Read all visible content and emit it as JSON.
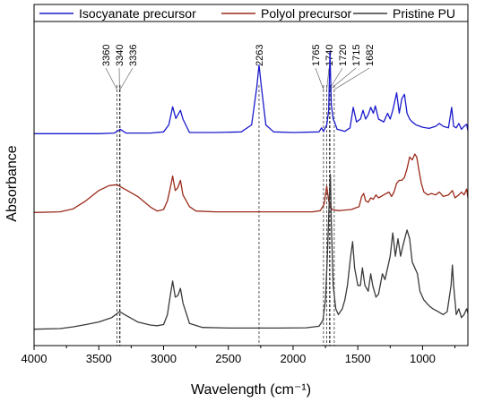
{
  "chart_data": {
    "type": "line",
    "xlabel": "Wavelength (cm⁻¹)",
    "ylabel": "Absorbance",
    "xlim": [
      4000,
      650
    ],
    "ylim": [
      0,
      1
    ],
    "x_reversed": true,
    "xticks": [
      4000,
      3500,
      3000,
      2500,
      2000,
      1500,
      1000
    ],
    "yticks_shown": false,
    "grid": false,
    "legend_position": "top",
    "peak_markers": [
      {
        "label": "3360",
        "x": 3360
      },
      {
        "label": "3340",
        "x": 3340
      },
      {
        "label": "3336",
        "x": 3336
      },
      {
        "label": "2263",
        "x": 2263
      },
      {
        "label": "1765",
        "x": 1765
      },
      {
        "label": "1740",
        "x": 1740
      },
      {
        "label": "1720",
        "x": 1720
      },
      {
        "label": "1715",
        "x": 1715
      },
      {
        "label": "1682",
        "x": 1682
      }
    ],
    "series": [
      {
        "name": "Isocyanate precursor",
        "color": "#1a1acc",
        "points": [
          [
            4000,
            0.72
          ],
          [
            3800,
            0.72
          ],
          [
            3500,
            0.72
          ],
          [
            3380,
            0.722
          ],
          [
            3335,
            0.735
          ],
          [
            3290,
            0.722
          ],
          [
            3100,
            0.722
          ],
          [
            3000,
            0.726
          ],
          [
            2960,
            0.75
          ],
          [
            2930,
            0.812
          ],
          [
            2905,
            0.772
          ],
          [
            2870,
            0.8
          ],
          [
            2850,
            0.77
          ],
          [
            2800,
            0.724
          ],
          [
            2600,
            0.724
          ],
          [
            2400,
            0.726
          ],
          [
            2320,
            0.75
          ],
          [
            2280,
            0.88
          ],
          [
            2263,
            0.955
          ],
          [
            2245,
            0.88
          ],
          [
            2210,
            0.75
          ],
          [
            2150,
            0.726
          ],
          [
            2000,
            0.724
          ],
          [
            1800,
            0.726
          ],
          [
            1780,
            0.74
          ],
          [
            1765,
            0.728
          ],
          [
            1740,
            0.75
          ],
          [
            1725,
            0.8
          ],
          [
            1715,
            1.0
          ],
          [
            1705,
            0.82
          ],
          [
            1690,
            0.77
          ],
          [
            1680,
            0.76
          ],
          [
            1660,
            0.735
          ],
          [
            1600,
            0.728
          ],
          [
            1560,
            0.74
          ],
          [
            1535,
            0.81
          ],
          [
            1510,
            0.76
          ],
          [
            1480,
            0.77
          ],
          [
            1460,
            0.8
          ],
          [
            1440,
            0.77
          ],
          [
            1420,
            0.785
          ],
          [
            1400,
            0.81
          ],
          [
            1380,
            0.79
          ],
          [
            1365,
            0.815
          ],
          [
            1340,
            0.77
          ],
          [
            1300,
            0.76
          ],
          [
            1270,
            0.79
          ],
          [
            1250,
            0.77
          ],
          [
            1230,
            0.8
          ],
          [
            1200,
            0.86
          ],
          [
            1180,
            0.79
          ],
          [
            1160,
            0.84
          ],
          [
            1140,
            0.855
          ],
          [
            1120,
            0.79
          ],
          [
            1100,
            0.77
          ],
          [
            1080,
            0.76
          ],
          [
            1050,
            0.75
          ],
          [
            1000,
            0.742
          ],
          [
            950,
            0.738
          ],
          [
            900,
            0.745
          ],
          [
            870,
            0.755
          ],
          [
            840,
            0.745
          ],
          [
            800,
            0.74
          ],
          [
            775,
            0.81
          ],
          [
            760,
            0.745
          ],
          [
            740,
            0.74
          ],
          [
            720,
            0.755
          ],
          [
            700,
            0.735
          ],
          [
            680,
            0.745
          ],
          [
            660,
            0.752
          ],
          [
            650,
            0.73
          ]
        ]
      },
      {
        "name": "Polyol precursor",
        "color": "#9b2a1a",
        "points": [
          [
            4000,
            0.45
          ],
          [
            3800,
            0.452
          ],
          [
            3700,
            0.462
          ],
          [
            3600,
            0.49
          ],
          [
            3500,
            0.525
          ],
          [
            3420,
            0.542
          ],
          [
            3360,
            0.545
          ],
          [
            3300,
            0.53
          ],
          [
            3200,
            0.505
          ],
          [
            3100,
            0.468
          ],
          [
            3050,
            0.455
          ],
          [
            3000,
            0.46
          ],
          [
            2970,
            0.49
          ],
          [
            2950,
            0.53
          ],
          [
            2930,
            0.575
          ],
          [
            2910,
            0.525
          ],
          [
            2890,
            0.535
          ],
          [
            2870,
            0.56
          ],
          [
            2850,
            0.51
          ],
          [
            2800,
            0.47
          ],
          [
            2750,
            0.455
          ],
          [
            2600,
            0.452
          ],
          [
            2400,
            0.452
          ],
          [
            2200,
            0.452
          ],
          [
            2000,
            0.452
          ],
          [
            1850,
            0.452
          ],
          [
            1790,
            0.456
          ],
          [
            1760,
            0.478
          ],
          [
            1740,
            0.54
          ],
          [
            1725,
            0.49
          ],
          [
            1700,
            0.46
          ],
          [
            1650,
            0.456
          ],
          [
            1550,
            0.46
          ],
          [
            1520,
            0.465
          ],
          [
            1490,
            0.47
          ],
          [
            1470,
            0.505
          ],
          [
            1455,
            0.515
          ],
          [
            1440,
            0.49
          ],
          [
            1420,
            0.485
          ],
          [
            1400,
            0.5
          ],
          [
            1380,
            0.495
          ],
          [
            1360,
            0.51
          ],
          [
            1340,
            0.5
          ],
          [
            1300,
            0.51
          ],
          [
            1260,
            0.52
          ],
          [
            1240,
            0.505
          ],
          [
            1220,
            0.52
          ],
          [
            1200,
            0.55
          ],
          [
            1180,
            0.56
          ],
          [
            1160,
            0.56
          ],
          [
            1140,
            0.57
          ],
          [
            1120,
            0.6
          ],
          [
            1100,
            0.64
          ],
          [
            1080,
            0.63
          ],
          [
            1060,
            0.65
          ],
          [
            1045,
            0.64
          ],
          [
            1030,
            0.6
          ],
          [
            1010,
            0.55
          ],
          [
            990,
            0.52
          ],
          [
            960,
            0.51
          ],
          [
            930,
            0.515
          ],
          [
            900,
            0.51
          ],
          [
            870,
            0.52
          ],
          [
            840,
            0.505
          ],
          [
            800,
            0.51
          ],
          [
            770,
            0.525
          ],
          [
            750,
            0.5
          ],
          [
            720,
            0.51
          ],
          [
            700,
            0.52
          ],
          [
            680,
            0.51
          ],
          [
            660,
            0.53
          ],
          [
            650,
            0.5
          ]
        ]
      },
      {
        "name": "Pristine PU",
        "color": "#3a3a3a",
        "points": [
          [
            4000,
            0.05
          ],
          [
            3800,
            0.052
          ],
          [
            3700,
            0.058
          ],
          [
            3600,
            0.066
          ],
          [
            3500,
            0.075
          ],
          [
            3400,
            0.09
          ],
          [
            3340,
            0.11
          ],
          [
            3300,
            0.1
          ],
          [
            3200,
            0.075
          ],
          [
            3100,
            0.064
          ],
          [
            3050,
            0.062
          ],
          [
            3000,
            0.066
          ],
          [
            2970,
            0.1
          ],
          [
            2950,
            0.16
          ],
          [
            2930,
            0.215
          ],
          [
            2910,
            0.16
          ],
          [
            2890,
            0.165
          ],
          [
            2870,
            0.19
          ],
          [
            2850,
            0.14
          ],
          [
            2800,
            0.07
          ],
          [
            2700,
            0.056
          ],
          [
            2500,
            0.054
          ],
          [
            2300,
            0.054
          ],
          [
            2100,
            0.054
          ],
          [
            1900,
            0.055
          ],
          [
            1800,
            0.06
          ],
          [
            1770,
            0.08
          ],
          [
            1750,
            0.15
          ],
          [
            1735,
            0.3
          ],
          [
            1720,
            0.5
          ],
          [
            1712,
            0.58
          ],
          [
            1705,
            0.42
          ],
          [
            1690,
            0.2
          ],
          [
            1670,
            0.12
          ],
          [
            1650,
            0.1
          ],
          [
            1620,
            0.12
          ],
          [
            1600,
            0.15
          ],
          [
            1580,
            0.2
          ],
          [
            1555,
            0.3
          ],
          [
            1540,
            0.35
          ],
          [
            1525,
            0.26
          ],
          [
            1500,
            0.2
          ],
          [
            1480,
            0.2
          ],
          [
            1465,
            0.26
          ],
          [
            1445,
            0.2
          ],
          [
            1420,
            0.18
          ],
          [
            1400,
            0.24
          ],
          [
            1385,
            0.2
          ],
          [
            1360,
            0.16
          ],
          [
            1340,
            0.17
          ],
          [
            1310,
            0.24
          ],
          [
            1290,
            0.22
          ],
          [
            1250,
            0.3
          ],
          [
            1230,
            0.38
          ],
          [
            1210,
            0.3
          ],
          [
            1190,
            0.36
          ],
          [
            1170,
            0.3
          ],
          [
            1150,
            0.34
          ],
          [
            1120,
            0.39
          ],
          [
            1100,
            0.36
          ],
          [
            1080,
            0.28
          ],
          [
            1060,
            0.26
          ],
          [
            1040,
            0.24
          ],
          [
            1020,
            0.18
          ],
          [
            990,
            0.15
          ],
          [
            950,
            0.13
          ],
          [
            920,
            0.12
          ],
          [
            880,
            0.11
          ],
          [
            840,
            0.1
          ],
          [
            810,
            0.11
          ],
          [
            780,
            0.2
          ],
          [
            770,
            0.27
          ],
          [
            760,
            0.2
          ],
          [
            740,
            0.1
          ],
          [
            720,
            0.12
          ],
          [
            700,
            0.09
          ],
          [
            680,
            0.1
          ],
          [
            660,
            0.12
          ],
          [
            650,
            0.105
          ]
        ]
      }
    ]
  }
}
